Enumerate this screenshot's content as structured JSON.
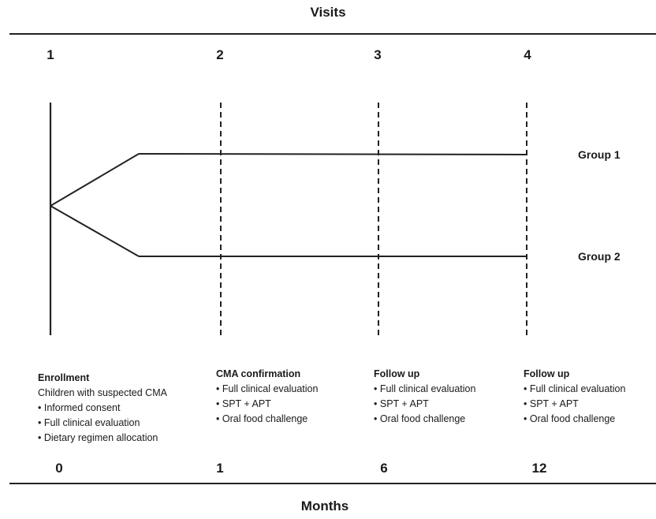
{
  "header": {
    "title": "Visits"
  },
  "footer": {
    "title": "Months"
  },
  "visit_numbers": [
    "1",
    "2",
    "3",
    "4"
  ],
  "month_numbers": [
    "0",
    "1",
    "6",
    "12"
  ],
  "groups": [
    "Group 1",
    "Group 2"
  ],
  "visits": [
    {
      "title": "Enrollment",
      "subtitle": "Children with suspected CMA",
      "items": [
        "Informed consent",
        "Full clinical evaluation",
        "Dietary regimen allocation"
      ]
    },
    {
      "title": "CMA confirmation",
      "items": [
        "Full clinical evaluation",
        "SPT + APT",
        "Oral food challenge"
      ]
    },
    {
      "title": "Follow up",
      "items": [
        "Full clinical evaluation",
        "SPT + APT",
        "Oral food challenge"
      ]
    },
    {
      "title": "Follow up",
      "items": [
        "Full clinical evaluation",
        "SPT + APT",
        "Oral food challenge"
      ]
    }
  ]
}
